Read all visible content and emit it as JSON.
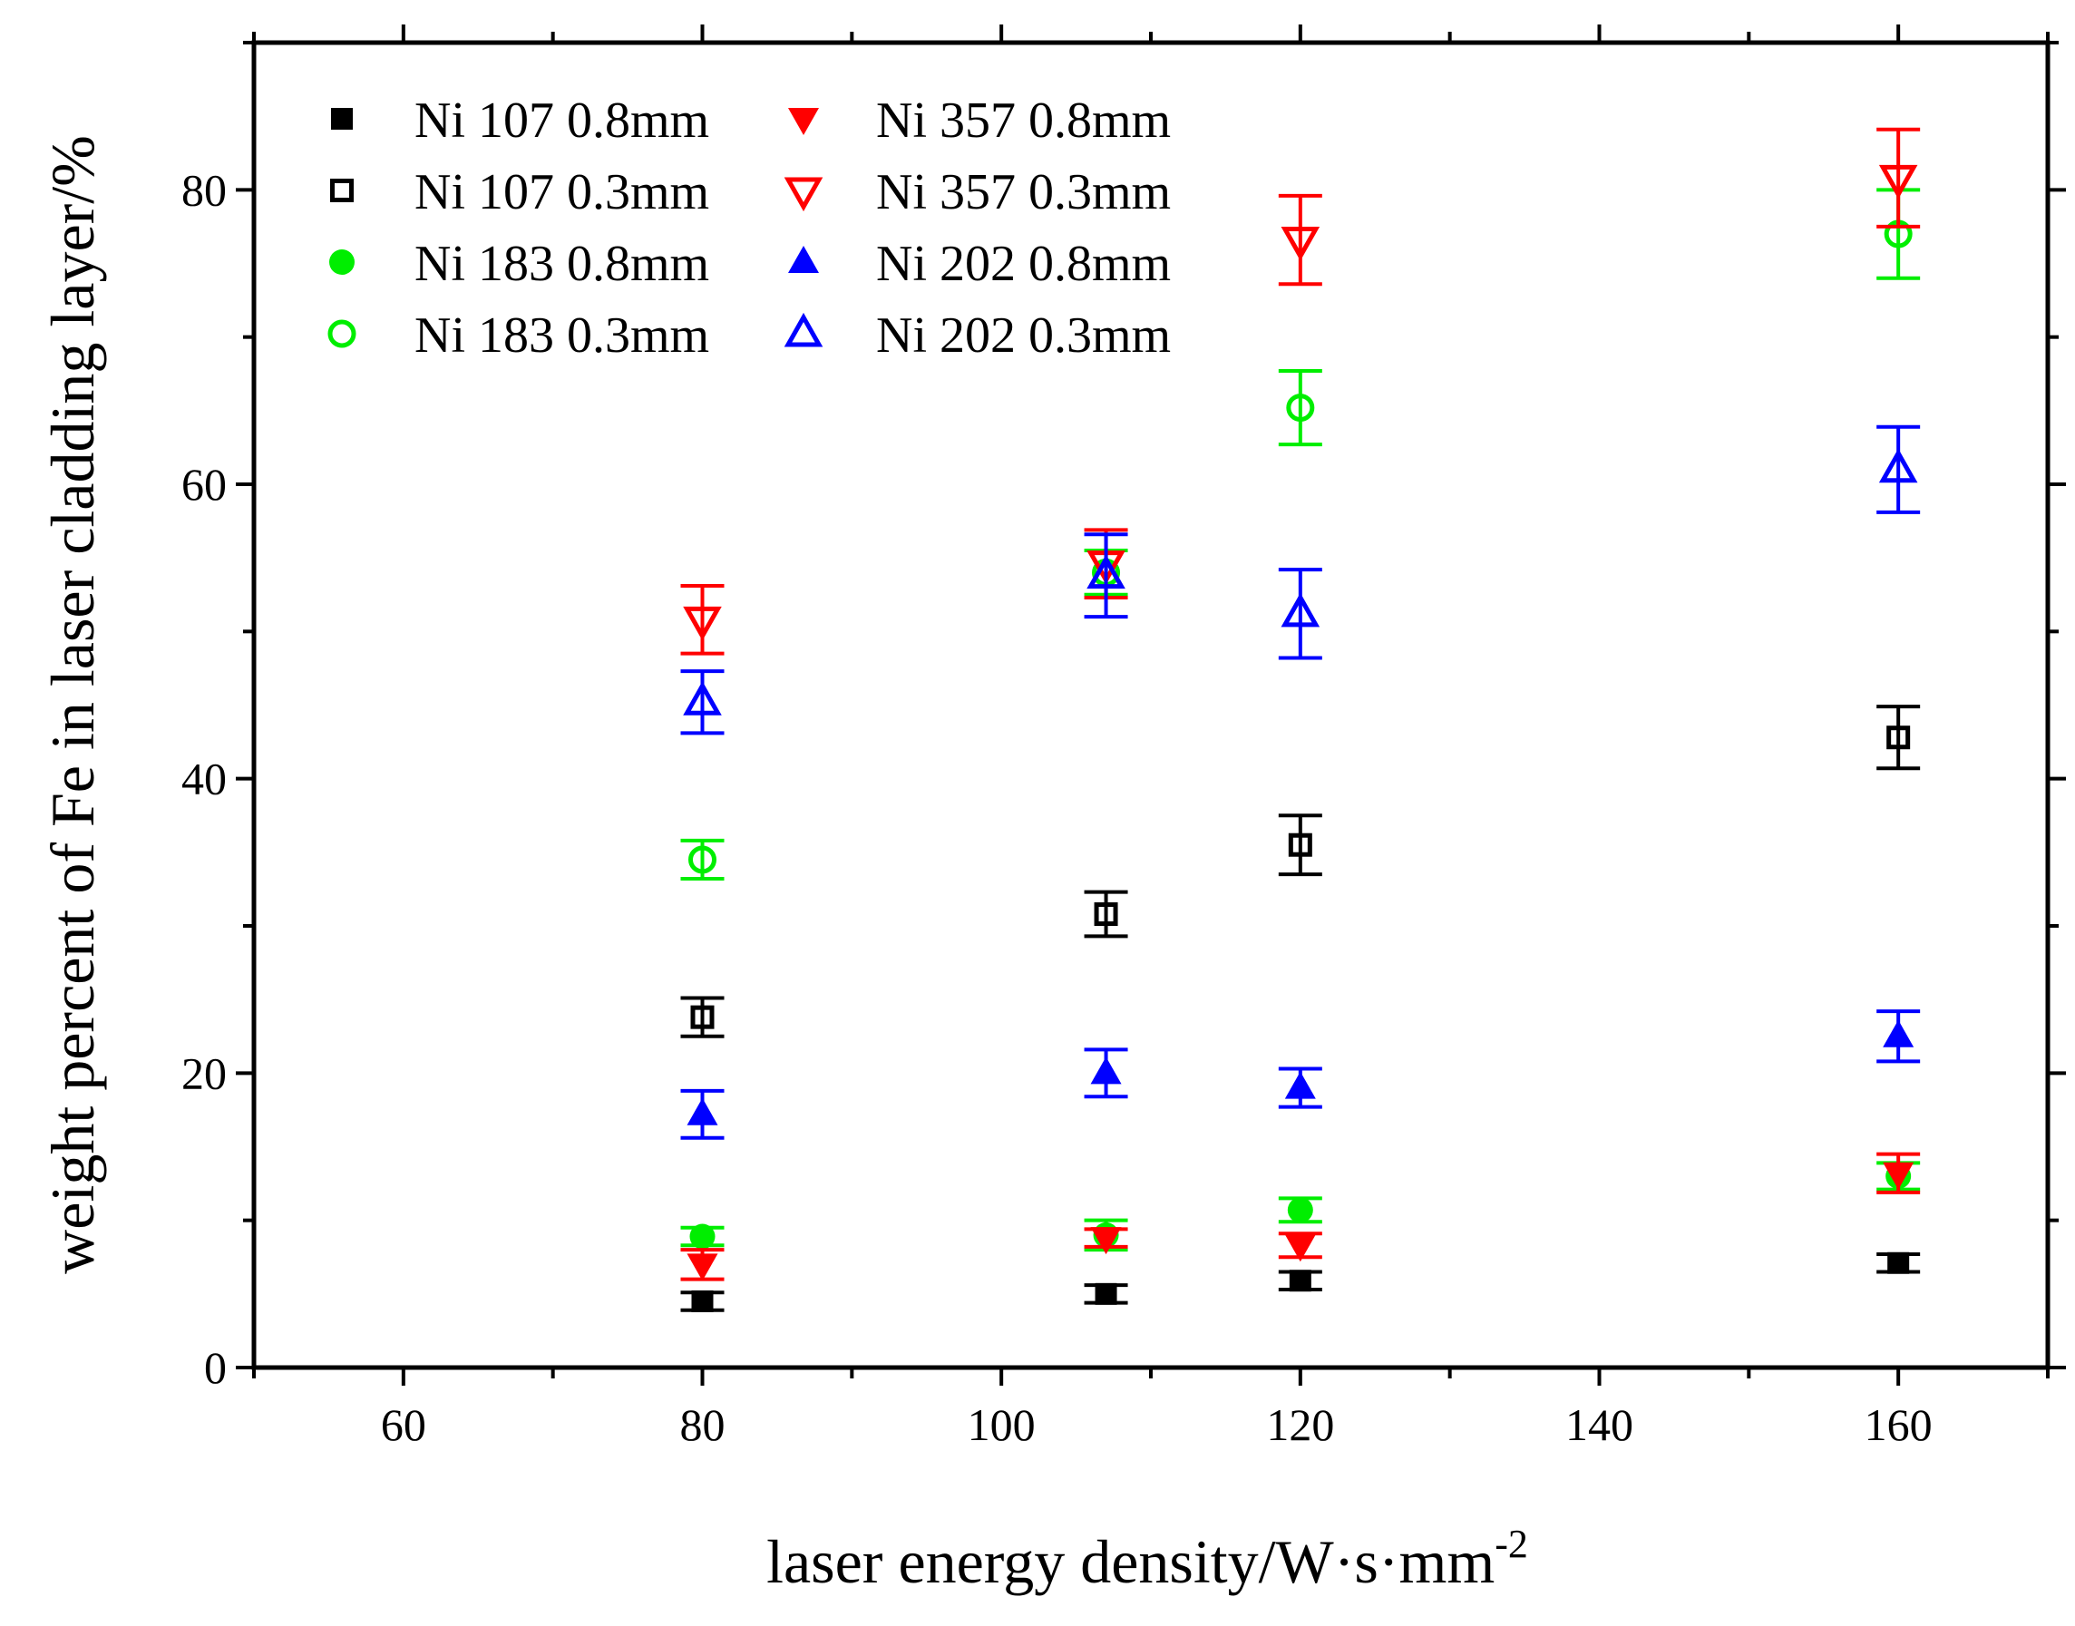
{
  "chart_data": {
    "type": "scatter",
    "title": "",
    "xlabel": "laser energy density/W·s·mm",
    "xlabel_superscript": "-2",
    "ylabel": "weight percent of Fe in laser cladding layer/%",
    "xlim": [
      50,
      170
    ],
    "ylim": [
      0,
      90
    ],
    "xticks": [
      60,
      80,
      100,
      120,
      140,
      160
    ],
    "yticks": [
      0,
      20,
      40,
      60,
      80
    ],
    "grid": false,
    "legend_position": "top-left",
    "x": [
      80,
      107,
      120,
      160
    ],
    "series": [
      {
        "name": "Ni 107 0.8mm",
        "marker": "square",
        "filled": true,
        "color": "#000000",
        "values": [
          4.5,
          5.0,
          5.9,
          7.1
        ],
        "errors": [
          0.6,
          0.6,
          0.6,
          0.6
        ]
      },
      {
        "name": "Ni 107 0.3mm",
        "marker": "square",
        "filled": false,
        "color": "#000000",
        "values": [
          23.8,
          30.8,
          35.5,
          42.8
        ],
        "errors": [
          1.3,
          1.5,
          2.0,
          2.1
        ]
      },
      {
        "name": "Ni 183 0.8mm",
        "marker": "circle",
        "filled": true,
        "color": "#00ee00",
        "values": [
          8.9,
          9.0,
          10.7,
          13.0
        ],
        "errors": [
          0.6,
          1.0,
          0.8,
          0.9
        ]
      },
      {
        "name": "Ni 183 0.3mm",
        "marker": "circle",
        "filled": false,
        "color": "#00ee00",
        "values": [
          34.5,
          54.0,
          65.2,
          77.0
        ],
        "errors": [
          1.3,
          1.5,
          2.5,
          3.0
        ]
      },
      {
        "name": "Ni 357 0.8mm",
        "marker": "triangle-down",
        "filled": true,
        "color": "#ff0000",
        "values": [
          7.0,
          8.8,
          8.3,
          13.2
        ],
        "errors": [
          1.0,
          0.6,
          0.8,
          1.3
        ]
      },
      {
        "name": "Ni 357 0.3mm",
        "marker": "triangle-down",
        "filled": false,
        "color": "#ff0000",
        "values": [
          50.8,
          54.6,
          76.6,
          80.8
        ],
        "errors": [
          2.3,
          2.3,
          3.0,
          3.3
        ]
      },
      {
        "name": "Ni 202 0.8mm",
        "marker": "triangle-up",
        "filled": true,
        "color": "#0000ff",
        "values": [
          17.2,
          20.0,
          19.0,
          22.5
        ],
        "errors": [
          1.6,
          1.6,
          1.3,
          1.7
        ]
      },
      {
        "name": "Ni 202 0.3mm",
        "marker": "triangle-up",
        "filled": false,
        "color": "#0000ff",
        "values": [
          45.2,
          53.8,
          51.2,
          61.0
        ],
        "errors": [
          2.1,
          2.8,
          3.0,
          2.9
        ]
      }
    ],
    "legend_order": [
      "Ni 107 0.8mm",
      "Ni 357 0.8mm",
      "Ni 107 0.3mm",
      "Ni 357 0.3mm",
      "Ni 183 0.8mm",
      "Ni 202 0.8mm",
      "Ni 183 0.3mm",
      "Ni 202 0.3mm"
    ]
  }
}
